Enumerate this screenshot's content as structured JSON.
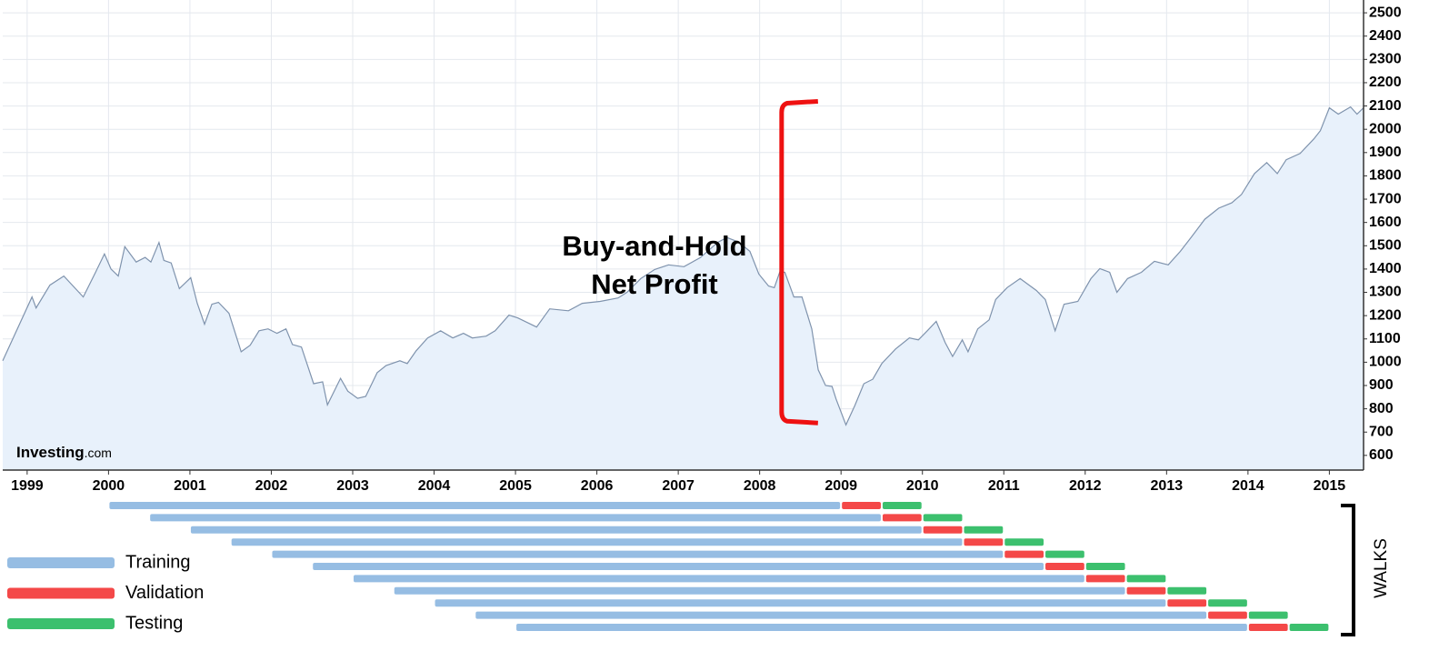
{
  "chart_data": [
    {
      "type": "area-line",
      "x": [
        1998.7,
        1999.06,
        1999.11,
        1999.28,
        1999.45,
        1999.69,
        1999.84,
        1999.95,
        2000.03,
        2000.12,
        2000.2,
        2000.34,
        2000.45,
        2000.52,
        2000.62,
        2000.68,
        2000.77,
        2000.87,
        2001.01,
        2001.09,
        2001.18,
        2001.27,
        2001.35,
        2001.48,
        2001.63,
        2001.74,
        2001.85,
        2001.96,
        2002.07,
        2002.18,
        2002.26,
        2002.37,
        2002.52,
        2002.63,
        2002.69,
        2002.85,
        2002.94,
        2003.06,
        2003.16,
        2003.3,
        2003.41,
        2003.58,
        2003.67,
        2003.78,
        2003.92,
        2004.08,
        2004.23,
        2004.36,
        2004.47,
        2004.64,
        2004.75,
        2004.92,
        2005.03,
        2005.26,
        2005.42,
        2005.65,
        2005.82,
        2006.04,
        2006.26,
        2006.37,
        2006.54,
        2006.71,
        2006.88,
        2007.07,
        2007.27,
        2007.49,
        2007.6,
        2007.74,
        2007.88,
        2007.99,
        2008.11,
        2008.18,
        2008.25,
        2008.31,
        2008.42,
        2008.52,
        2008.64,
        2008.72,
        2008.81,
        2008.89,
        2008.94,
        2009.06,
        2009.17,
        2009.28,
        2009.39,
        2009.5,
        2009.67,
        2009.84,
        2009.95,
        2010.06,
        2010.17,
        2010.28,
        2010.37,
        2010.49,
        2010.56,
        2010.68,
        2010.82,
        2010.9,
        2011.04,
        2011.2,
        2011.4,
        2011.51,
        2011.63,
        2011.74,
        2011.91,
        2012.07,
        2012.18,
        2012.3,
        2012.39,
        2012.52,
        2012.69,
        2012.85,
        2013.02,
        2013.17,
        2013.3,
        2013.47,
        2013.64,
        2013.8,
        2013.92,
        2014.08,
        2014.23,
        2014.36,
        2014.47,
        2014.64,
        2014.81,
        2014.89,
        2015.0,
        2015.11,
        2015.26,
        2015.34,
        2015.42
      ],
      "series": [
        {
          "color": "#7f93ad",
          "fill": "#e8f1fb",
          "values": [
            1006,
            1280,
            1233,
            1331,
            1370,
            1280,
            1386,
            1465,
            1400,
            1370,
            1496,
            1430,
            1450,
            1430,
            1514,
            1437,
            1426,
            1316,
            1363,
            1253,
            1163,
            1249,
            1257,
            1210,
            1045,
            1073,
            1135,
            1143,
            1124,
            1143,
            1076,
            1065,
            908,
            916,
            817,
            931,
            876,
            845,
            853,
            955,
            986,
            1006,
            994,
            1049,
            1104,
            1135,
            1104,
            1124,
            1104,
            1112,
            1135,
            1202,
            1190,
            1151,
            1229,
            1221,
            1253,
            1261,
            1276,
            1300,
            1359,
            1398,
            1418,
            1410,
            1449,
            1516,
            1535,
            1516,
            1476,
            1378,
            1327,
            1320,
            1390,
            1386,
            1280,
            1280,
            1143,
            967,
            900,
            896,
            841,
            731,
            814,
            908,
            927,
            994,
            1057,
            1104,
            1096,
            1135,
            1175,
            1084,
            1025,
            1096,
            1045,
            1143,
            1182,
            1269,
            1320,
            1359,
            1308,
            1269,
            1135,
            1249,
            1261,
            1359,
            1402,
            1386,
            1300,
            1359,
            1386,
            1433,
            1418,
            1476,
            1535,
            1614,
            1661,
            1684,
            1720,
            1810,
            1857,
            1810,
            1869,
            1896,
            1959,
            1994,
            2092,
            2065,
            2096,
            2065,
            2092
          ]
        }
      ],
      "xlim": [
        1998.7,
        2015.42
      ],
      "xticks": [
        1999,
        2000,
        2001,
        2002,
        2003,
        2004,
        2005,
        2006,
        2007,
        2008,
        2009,
        2010,
        2011,
        2012,
        2013,
        2014,
        2015
      ],
      "ylim": [
        537,
        2555
      ],
      "yticks": [
        600,
        700,
        800,
        900,
        1000,
        1100,
        1200,
        1300,
        1400,
        1500,
        1600,
        1700,
        1800,
        1900,
        2000,
        2100,
        2200,
        2300,
        2400,
        2500
      ],
      "grid": true,
      "annotation": [
        "Buy-and-Hold",
        "Net Profit"
      ],
      "bracket": {
        "x": 2008.27,
        "from": 739,
        "to": 2120,
        "color": "#ee1111"
      },
      "watermark": [
        "Investing",
        ".com"
      ]
    },
    {
      "type": "walk-forward",
      "xlim": [
        1998.7,
        2015.42
      ],
      "legend": "left",
      "label": "WALKS",
      "series": [
        {
          "name": "Training",
          "color": "#96bde3",
          "values": [
            [
              2000,
              2009
            ],
            [
              2000.5,
              2009.5
            ],
            [
              2001,
              2010
            ],
            [
              2001.5,
              2010.5
            ],
            [
              2002,
              2011
            ],
            [
              2002.5,
              2011.5
            ],
            [
              2003,
              2012
            ],
            [
              2003.5,
              2012.5
            ],
            [
              2004,
              2013
            ],
            [
              2004.5,
              2013.5
            ],
            [
              2005,
              2014
            ]
          ]
        },
        {
          "name": "Validation",
          "color": "#f44848",
          "values": [
            [
              2009,
              2009.5
            ],
            [
              2009.5,
              2010
            ],
            [
              2010,
              2010.5
            ],
            [
              2010.5,
              2011
            ],
            [
              2011,
              2011.5
            ],
            [
              2011.5,
              2012
            ],
            [
              2012,
              2012.5
            ],
            [
              2012.5,
              2013
            ],
            [
              2013,
              2013.5
            ],
            [
              2013.5,
              2014
            ],
            [
              2014,
              2014.5
            ]
          ]
        },
        {
          "name": "Testing",
          "color": "#3cc06e",
          "values": [
            [
              2009.5,
              2010
            ],
            [
              2010,
              2010.5
            ],
            [
              2010.5,
              2011
            ],
            [
              2011,
              2011.5
            ],
            [
              2011.5,
              2012
            ],
            [
              2012,
              2012.5
            ],
            [
              2012.5,
              2013
            ],
            [
              2013,
              2013.5
            ],
            [
              2013.5,
              2014
            ],
            [
              2014,
              2014.5
            ],
            [
              2014.5,
              2015
            ]
          ]
        }
      ]
    }
  ]
}
